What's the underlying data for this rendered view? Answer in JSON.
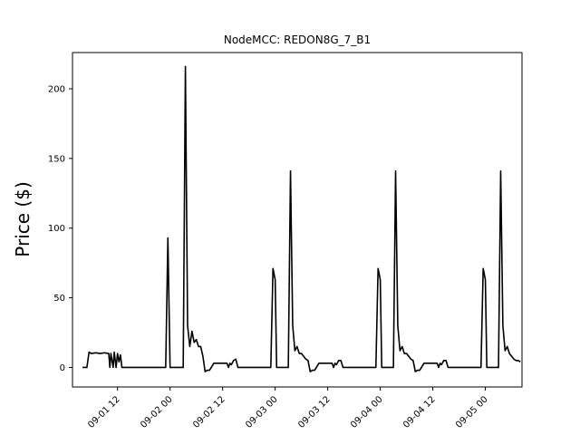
{
  "chart_data": {
    "type": "line",
    "title": "NodeMCC: REDON8G_7_B1",
    "xlabel": "",
    "ylabel": "Price ($)",
    "xlim": [
      "2024-09-01 01:43",
      "2024-09-05 08:22"
    ],
    "ylim": [
      -14,
      226
    ],
    "grid": false,
    "x_ticks": [
      "2024-09-01 12:00",
      "2024-09-02 00:00",
      "2024-09-02 12:00",
      "2024-09-03 00:00",
      "2024-09-03 12:00",
      "2024-09-04 00:00",
      "2024-09-04 12:00",
      "2024-09-05 00:00"
    ],
    "x_tick_labels": [
      "09-01 12",
      "09-02 00",
      "09-02 12",
      "09-03 00",
      "09-03 12",
      "09-04 00",
      "09-04 12",
      "09-05 00"
    ],
    "y_ticks": [
      0,
      50,
      100,
      150,
      200
    ],
    "y_tick_labels": [
      "0",
      "50",
      "100",
      "150",
      "200"
    ],
    "series": [
      {
        "color": "#000000",
        "points": [
          [
            "2024-09-01 04:00",
            0
          ],
          [
            "2024-09-01 05:00",
            0
          ],
          [
            "2024-09-01 05:30",
            11
          ],
          [
            "2024-09-01 06:00",
            10
          ],
          [
            "2024-09-01 07:00",
            10.5
          ],
          [
            "2024-09-01 08:00",
            10
          ],
          [
            "2024-09-01 09:00",
            10.5
          ],
          [
            "2024-09-01 10:00",
            10
          ],
          [
            "2024-09-01 10:15",
            0
          ],
          [
            "2024-09-01 10:30",
            10
          ],
          [
            "2024-09-01 11:00",
            0
          ],
          [
            "2024-09-01 11:15",
            11
          ],
          [
            "2024-09-01 11:40",
            0
          ],
          [
            "2024-09-01 12:00",
            10
          ],
          [
            "2024-09-01 12:20",
            4
          ],
          [
            "2024-09-01 12:40",
            9
          ],
          [
            "2024-09-01 13:00",
            0
          ],
          [
            "2024-09-01 14:00",
            0
          ],
          [
            "2024-09-01 16:00",
            0
          ],
          [
            "2024-09-01 18:00",
            0
          ],
          [
            "2024-09-01 20:00",
            0
          ],
          [
            "2024-09-01 22:00",
            0
          ],
          [
            "2024-09-01 23:00",
            0
          ],
          [
            "2024-09-01 23:30",
            93
          ],
          [
            "2024-09-02 00:00",
            0
          ],
          [
            "2024-09-02 02:00",
            0
          ],
          [
            "2024-09-02 03:00",
            0
          ],
          [
            "2024-09-02 03:30",
            216
          ],
          [
            "2024-09-02 04:00",
            30
          ],
          [
            "2024-09-02 04:30",
            15
          ],
          [
            "2024-09-02 05:00",
            26
          ],
          [
            "2024-09-02 05:30",
            18
          ],
          [
            "2024-09-02 06:00",
            20
          ],
          [
            "2024-09-02 06:30",
            15
          ],
          [
            "2024-09-02 07:00",
            15
          ],
          [
            "2024-09-02 07:30",
            8
          ],
          [
            "2024-09-02 08:00",
            -3
          ],
          [
            "2024-09-02 08:30",
            -2
          ],
          [
            "2024-09-02 09:00",
            -2
          ],
          [
            "2024-09-02 10:00",
            3
          ],
          [
            "2024-09-02 11:00",
            3
          ],
          [
            "2024-09-02 12:00",
            3
          ],
          [
            "2024-09-02 13:00",
            3
          ],
          [
            "2024-09-02 13:20",
            0
          ],
          [
            "2024-09-02 13:40",
            3
          ],
          [
            "2024-09-02 14:00",
            2
          ],
          [
            "2024-09-02 14:30",
            5
          ],
          [
            "2024-09-02 15:00",
            6
          ],
          [
            "2024-09-02 15:30",
            0
          ],
          [
            "2024-09-02 16:00",
            0
          ],
          [
            "2024-09-02 18:00",
            0
          ],
          [
            "2024-09-02 20:00",
            0
          ],
          [
            "2024-09-02 22:00",
            0
          ],
          [
            "2024-09-02 23:00",
            0
          ],
          [
            "2024-09-02 23:30",
            71
          ],
          [
            "2024-09-03 00:00",
            63
          ],
          [
            "2024-09-03 00:20",
            0
          ],
          [
            "2024-09-03 02:00",
            0
          ],
          [
            "2024-09-03 03:00",
            0
          ],
          [
            "2024-09-03 03:30",
            141
          ],
          [
            "2024-09-03 04:00",
            30
          ],
          [
            "2024-09-03 04:30",
            12
          ],
          [
            "2024-09-03 05:00",
            15
          ],
          [
            "2024-09-03 05:30",
            10
          ],
          [
            "2024-09-03 06:00",
            10
          ],
          [
            "2024-09-03 06:30",
            8
          ],
          [
            "2024-09-03 07:00",
            6
          ],
          [
            "2024-09-03 07:30",
            5
          ],
          [
            "2024-09-03 08:00",
            -3
          ],
          [
            "2024-09-03 08:30",
            -2
          ],
          [
            "2024-09-03 09:00",
            -2
          ],
          [
            "2024-09-03 10:00",
            3
          ],
          [
            "2024-09-03 11:00",
            3
          ],
          [
            "2024-09-03 12:00",
            3
          ],
          [
            "2024-09-03 13:00",
            3
          ],
          [
            "2024-09-03 13:20",
            0
          ],
          [
            "2024-09-03 13:40",
            3
          ],
          [
            "2024-09-03 14:00",
            2
          ],
          [
            "2024-09-03 14:30",
            5
          ],
          [
            "2024-09-03 15:00",
            5
          ],
          [
            "2024-09-03 15:30",
            0
          ],
          [
            "2024-09-03 16:00",
            0
          ],
          [
            "2024-09-03 18:00",
            0
          ],
          [
            "2024-09-03 20:00",
            0
          ],
          [
            "2024-09-03 22:00",
            0
          ],
          [
            "2024-09-03 23:00",
            0
          ],
          [
            "2024-09-03 23:30",
            71
          ],
          [
            "2024-09-04 00:00",
            63
          ],
          [
            "2024-09-04 00:20",
            0
          ],
          [
            "2024-09-04 02:00",
            0
          ],
          [
            "2024-09-04 03:00",
            0
          ],
          [
            "2024-09-04 03:30",
            141
          ],
          [
            "2024-09-04 04:00",
            30
          ],
          [
            "2024-09-04 04:30",
            12
          ],
          [
            "2024-09-04 05:00",
            15
          ],
          [
            "2024-09-04 05:30",
            10
          ],
          [
            "2024-09-04 06:00",
            10
          ],
          [
            "2024-09-04 06:30",
            8
          ],
          [
            "2024-09-04 07:00",
            6
          ],
          [
            "2024-09-04 07:30",
            5
          ],
          [
            "2024-09-04 08:00",
            -3
          ],
          [
            "2024-09-04 08:30",
            -2
          ],
          [
            "2024-09-04 09:00",
            -2
          ],
          [
            "2024-09-04 10:00",
            3
          ],
          [
            "2024-09-04 11:00",
            3
          ],
          [
            "2024-09-04 12:00",
            3
          ],
          [
            "2024-09-04 13:00",
            3
          ],
          [
            "2024-09-04 13:20",
            0
          ],
          [
            "2024-09-04 13:40",
            3
          ],
          [
            "2024-09-04 14:00",
            2
          ],
          [
            "2024-09-04 14:30",
            5
          ],
          [
            "2024-09-04 15:00",
            5
          ],
          [
            "2024-09-04 15:30",
            0
          ],
          [
            "2024-09-04 16:00",
            0
          ],
          [
            "2024-09-04 18:00",
            0
          ],
          [
            "2024-09-04 20:00",
            0
          ],
          [
            "2024-09-04 22:00",
            0
          ],
          [
            "2024-09-04 23:00",
            0
          ],
          [
            "2024-09-04 23:30",
            71
          ],
          [
            "2024-09-05 00:00",
            63
          ],
          [
            "2024-09-05 00:20",
            0
          ],
          [
            "2024-09-05 02:00",
            0
          ],
          [
            "2024-09-05 03:00",
            0
          ],
          [
            "2024-09-05 03:30",
            141
          ],
          [
            "2024-09-05 04:00",
            30
          ],
          [
            "2024-09-05 04:30",
            12
          ],
          [
            "2024-09-05 05:00",
            15
          ],
          [
            "2024-09-05 05:30",
            10
          ],
          [
            "2024-09-05 06:00",
            8
          ],
          [
            "2024-09-05 06:30",
            6
          ],
          [
            "2024-09-05 07:00",
            5
          ],
          [
            "2024-09-05 07:30",
            5
          ],
          [
            "2024-09-05 08:00",
            4
          ]
        ]
      }
    ]
  }
}
